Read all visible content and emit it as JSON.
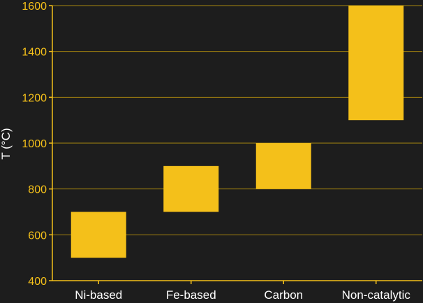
{
  "chart_data": {
    "type": "bar",
    "subtype": "floating-range",
    "categories": [
      "Ni-based",
      "Fe-based",
      "Carbon",
      "Non-catalytic"
    ],
    "ranges": [
      [
        500,
        700
      ],
      [
        700,
        900
      ],
      [
        800,
        1000
      ],
      [
        1100,
        1600
      ]
    ],
    "ylabel": "T (°C)",
    "xlabel": "",
    "ylim": [
      400,
      1600
    ],
    "yticks": [
      400,
      600,
      800,
      1000,
      1200,
      1400,
      1600
    ],
    "grid": "horizontal",
    "legend": "none"
  },
  "colors": {
    "background": "#1d1d1d",
    "bar": "#f4c01a",
    "gridline": "#a8860e",
    "axis": "#f4c01a",
    "tick_text": "#f4c01a",
    "label_text": "#ffffff"
  }
}
